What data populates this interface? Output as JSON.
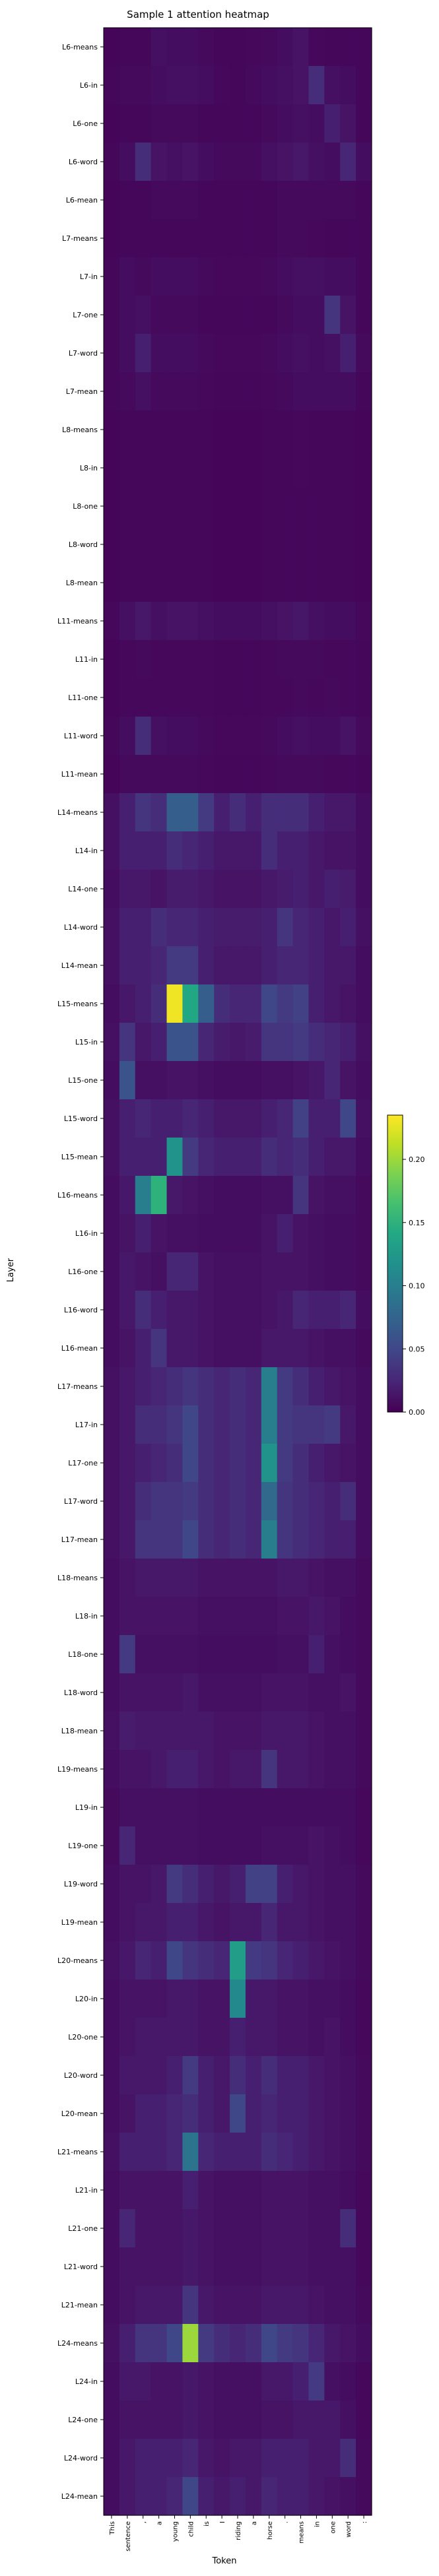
{
  "chart_data": {
    "type": "heatmap",
    "title": "Sample 1 attention heatmap",
    "xlabel": "Token",
    "ylabel": "Layer",
    "x_tick_labels": [
      "This",
      "sentence",
      ",",
      "a",
      "young",
      "child",
      "is",
      "I",
      "riding",
      "a",
      "horse",
      ".",
      "means",
      "in",
      "one",
      "word",
      ":"
    ],
    "y_tick_labels": [
      "L6-means",
      "L6-in",
      "L6-one",
      "L6-word",
      "L6-mean",
      "L7-means",
      "L7-in",
      "L7-one",
      "L7-word",
      "L7-mean",
      "L8-means",
      "L8-in",
      "L8-one",
      "L8-word",
      "L8-mean",
      "L11-means",
      "L11-in",
      "L11-one",
      "L11-word",
      "L11-mean",
      "L14-means",
      "L14-in",
      "L14-one",
      "L14-word",
      "L14-mean",
      "L15-means",
      "L15-in",
      "L15-one",
      "L15-word",
      "L15-mean",
      "L16-means",
      "L16-in",
      "L16-one",
      "L16-word",
      "L16-mean",
      "L17-means",
      "L17-in",
      "L17-one",
      "L17-word",
      "L17-mean",
      "L18-means",
      "L18-in",
      "L18-one",
      "L18-word",
      "L18-mean",
      "L19-means",
      "L19-in",
      "L19-one",
      "L19-word",
      "L19-mean",
      "L20-means",
      "L20-in",
      "L20-one",
      "L20-word",
      "L20-mean",
      "L21-means",
      "L21-in",
      "L21-one",
      "L21-word",
      "L21-mean",
      "L24-means",
      "L24-in",
      "L24-one",
      "L24-word",
      "L24-mean"
    ],
    "values": [
      [
        0.003,
        0.004,
        0.004,
        0.01,
        0.008,
        0.008,
        0.006,
        0.004,
        0.004,
        0.005,
        0.006,
        0.008,
        0.012,
        0.005,
        0.004,
        0.004,
        0.004
      ],
      [
        0.004,
        0.006,
        0.006,
        0.008,
        0.01,
        0.01,
        0.008,
        0.005,
        0.004,
        0.006,
        0.008,
        0.01,
        0.012,
        0.03,
        0.01,
        0.008,
        0.004
      ],
      [
        0.003,
        0.004,
        0.004,
        0.006,
        0.006,
        0.006,
        0.004,
        0.004,
        0.004,
        0.004,
        0.006,
        0.008,
        0.01,
        0.008,
        0.02,
        0.012,
        0.004
      ],
      [
        0.004,
        0.008,
        0.03,
        0.012,
        0.01,
        0.012,
        0.008,
        0.006,
        0.006,
        0.006,
        0.01,
        0.012,
        0.015,
        0.01,
        0.008,
        0.025,
        0.008
      ],
      [
        0.003,
        0.004,
        0.004,
        0.006,
        0.006,
        0.006,
        0.004,
        0.004,
        0.004,
        0.004,
        0.004,
        0.006,
        0.006,
        0.006,
        0.006,
        0.006,
        0.004
      ],
      [
        0.003,
        0.004,
        0.004,
        0.004,
        0.004,
        0.004,
        0.004,
        0.004,
        0.004,
        0.004,
        0.004,
        0.006,
        0.006,
        0.005,
        0.004,
        0.004,
        0.004
      ],
      [
        0.004,
        0.008,
        0.006,
        0.008,
        0.008,
        0.008,
        0.006,
        0.005,
        0.005,
        0.005,
        0.006,
        0.008,
        0.01,
        0.01,
        0.008,
        0.008,
        0.004
      ],
      [
        0.004,
        0.008,
        0.01,
        0.006,
        0.006,
        0.006,
        0.004,
        0.004,
        0.004,
        0.004,
        0.004,
        0.006,
        0.008,
        0.008,
        0.035,
        0.012,
        0.004
      ],
      [
        0.004,
        0.008,
        0.02,
        0.008,
        0.008,
        0.008,
        0.006,
        0.005,
        0.005,
        0.005,
        0.006,
        0.008,
        0.01,
        0.008,
        0.01,
        0.02,
        0.006
      ],
      [
        0.004,
        0.006,
        0.01,
        0.006,
        0.006,
        0.006,
        0.005,
        0.004,
        0.004,
        0.004,
        0.005,
        0.006,
        0.008,
        0.008,
        0.008,
        0.008,
        0.004
      ],
      [
        0.003,
        0.004,
        0.004,
        0.004,
        0.004,
        0.004,
        0.004,
        0.003,
        0.003,
        0.003,
        0.004,
        0.004,
        0.005,
        0.004,
        0.004,
        0.004,
        0.003
      ],
      [
        0.003,
        0.004,
        0.004,
        0.004,
        0.004,
        0.004,
        0.004,
        0.003,
        0.003,
        0.003,
        0.004,
        0.004,
        0.005,
        0.004,
        0.004,
        0.004,
        0.003
      ],
      [
        0.003,
        0.004,
        0.004,
        0.004,
        0.004,
        0.004,
        0.004,
        0.003,
        0.003,
        0.003,
        0.004,
        0.004,
        0.004,
        0.004,
        0.004,
        0.004,
        0.003
      ],
      [
        0.003,
        0.004,
        0.004,
        0.004,
        0.004,
        0.004,
        0.004,
        0.003,
        0.003,
        0.003,
        0.004,
        0.004,
        0.004,
        0.004,
        0.004,
        0.004,
        0.003
      ],
      [
        0.003,
        0.004,
        0.004,
        0.004,
        0.004,
        0.004,
        0.004,
        0.003,
        0.003,
        0.003,
        0.004,
        0.004,
        0.004,
        0.004,
        0.004,
        0.004,
        0.003
      ],
      [
        0.005,
        0.01,
        0.015,
        0.01,
        0.012,
        0.012,
        0.01,
        0.008,
        0.008,
        0.008,
        0.01,
        0.012,
        0.014,
        0.01,
        0.008,
        0.008,
        0.005
      ],
      [
        0.003,
        0.005,
        0.006,
        0.005,
        0.005,
        0.005,
        0.005,
        0.004,
        0.004,
        0.004,
        0.005,
        0.006,
        0.006,
        0.006,
        0.005,
        0.005,
        0.004
      ],
      [
        0.003,
        0.005,
        0.005,
        0.005,
        0.005,
        0.005,
        0.005,
        0.004,
        0.004,
        0.004,
        0.005,
        0.005,
        0.006,
        0.005,
        0.006,
        0.005,
        0.004
      ],
      [
        0.004,
        0.008,
        0.03,
        0.01,
        0.008,
        0.008,
        0.006,
        0.005,
        0.005,
        0.005,
        0.006,
        0.008,
        0.01,
        0.008,
        0.008,
        0.012,
        0.006
      ],
      [
        0.003,
        0.006,
        0.006,
        0.006,
        0.006,
        0.006,
        0.005,
        0.004,
        0.004,
        0.004,
        0.005,
        0.006,
        0.006,
        0.006,
        0.005,
        0.005,
        0.004
      ],
      [
        0.01,
        0.02,
        0.035,
        0.03,
        0.07,
        0.07,
        0.04,
        0.02,
        0.03,
        0.02,
        0.03,
        0.03,
        0.03,
        0.02,
        0.015,
        0.015,
        0.008
      ],
      [
        0.01,
        0.02,
        0.02,
        0.02,
        0.03,
        0.025,
        0.02,
        0.015,
        0.015,
        0.015,
        0.03,
        0.02,
        0.02,
        0.015,
        0.012,
        0.012,
        0.008
      ],
      [
        0.008,
        0.015,
        0.015,
        0.012,
        0.018,
        0.018,
        0.015,
        0.012,
        0.012,
        0.012,
        0.015,
        0.018,
        0.02,
        0.015,
        0.02,
        0.018,
        0.008
      ],
      [
        0.01,
        0.02,
        0.02,
        0.03,
        0.025,
        0.025,
        0.02,
        0.018,
        0.018,
        0.018,
        0.02,
        0.035,
        0.025,
        0.02,
        0.015,
        0.02,
        0.01
      ],
      [
        0.01,
        0.02,
        0.02,
        0.025,
        0.04,
        0.04,
        0.02,
        0.015,
        0.015,
        0.015,
        0.02,
        0.025,
        0.025,
        0.02,
        0.015,
        0.015,
        0.008
      ],
      [
        0.008,
        0.015,
        0.02,
        0.03,
        0.23,
        0.14,
        0.07,
        0.03,
        0.025,
        0.025,
        0.05,
        0.04,
        0.045,
        0.02,
        0.015,
        0.012,
        0.008
      ],
      [
        0.01,
        0.035,
        0.015,
        0.02,
        0.06,
        0.06,
        0.025,
        0.018,
        0.015,
        0.018,
        0.035,
        0.035,
        0.04,
        0.03,
        0.025,
        0.02,
        0.01
      ],
      [
        0.008,
        0.06,
        0.01,
        0.01,
        0.012,
        0.012,
        0.01,
        0.008,
        0.008,
        0.008,
        0.01,
        0.01,
        0.012,
        0.015,
        0.025,
        0.012,
        0.008
      ],
      [
        0.01,
        0.02,
        0.025,
        0.02,
        0.02,
        0.025,
        0.02,
        0.015,
        0.015,
        0.015,
        0.02,
        0.025,
        0.045,
        0.02,
        0.02,
        0.05,
        0.01
      ],
      [
        0.01,
        0.02,
        0.02,
        0.02,
        0.12,
        0.04,
        0.025,
        0.02,
        0.02,
        0.02,
        0.03,
        0.025,
        0.03,
        0.02,
        0.015,
        0.015,
        0.008
      ],
      [
        0.008,
        0.015,
        0.1,
        0.15,
        0.015,
        0.012,
        0.01,
        0.008,
        0.008,
        0.008,
        0.01,
        0.01,
        0.035,
        0.012,
        0.01,
        0.01,
        0.006
      ],
      [
        0.008,
        0.012,
        0.02,
        0.012,
        0.01,
        0.01,
        0.008,
        0.008,
        0.008,
        0.008,
        0.012,
        0.02,
        0.012,
        0.01,
        0.008,
        0.008,
        0.006
      ],
      [
        0.008,
        0.015,
        0.012,
        0.01,
        0.025,
        0.025,
        0.012,
        0.01,
        0.01,
        0.01,
        0.012,
        0.012,
        0.012,
        0.01,
        0.008,
        0.008,
        0.006
      ],
      [
        0.008,
        0.015,
        0.03,
        0.02,
        0.015,
        0.015,
        0.012,
        0.01,
        0.01,
        0.01,
        0.012,
        0.015,
        0.025,
        0.02,
        0.02,
        0.025,
        0.008
      ],
      [
        0.008,
        0.012,
        0.02,
        0.035,
        0.015,
        0.015,
        0.012,
        0.01,
        0.01,
        0.01,
        0.015,
        0.015,
        0.015,
        0.012,
        0.01,
        0.01,
        0.006
      ],
      [
        0.01,
        0.015,
        0.02,
        0.025,
        0.03,
        0.035,
        0.03,
        0.025,
        0.03,
        0.025,
        0.1,
        0.04,
        0.03,
        0.02,
        0.015,
        0.012,
        0.008
      ],
      [
        0.01,
        0.015,
        0.03,
        0.03,
        0.035,
        0.05,
        0.03,
        0.025,
        0.03,
        0.025,
        0.1,
        0.04,
        0.035,
        0.035,
        0.04,
        0.015,
        0.008
      ],
      [
        0.01,
        0.015,
        0.02,
        0.025,
        0.03,
        0.05,
        0.03,
        0.025,
        0.03,
        0.025,
        0.12,
        0.04,
        0.03,
        0.02,
        0.015,
        0.012,
        0.008
      ],
      [
        0.01,
        0.015,
        0.03,
        0.035,
        0.035,
        0.04,
        0.03,
        0.025,
        0.03,
        0.025,
        0.08,
        0.035,
        0.03,
        0.025,
        0.02,
        0.03,
        0.008
      ],
      [
        0.01,
        0.015,
        0.035,
        0.035,
        0.035,
        0.05,
        0.03,
        0.025,
        0.03,
        0.025,
        0.1,
        0.035,
        0.03,
        0.025,
        0.02,
        0.02,
        0.008
      ],
      [
        0.008,
        0.012,
        0.015,
        0.015,
        0.015,
        0.015,
        0.012,
        0.012,
        0.012,
        0.012,
        0.012,
        0.015,
        0.015,
        0.012,
        0.01,
        0.01,
        0.006
      ],
      [
        0.008,
        0.012,
        0.012,
        0.012,
        0.012,
        0.012,
        0.01,
        0.01,
        0.01,
        0.01,
        0.01,
        0.012,
        0.012,
        0.015,
        0.012,
        0.008,
        0.006
      ],
      [
        0.008,
        0.04,
        0.01,
        0.01,
        0.01,
        0.01,
        0.008,
        0.008,
        0.008,
        0.008,
        0.008,
        0.01,
        0.01,
        0.02,
        0.01,
        0.008,
        0.006
      ],
      [
        0.008,
        0.012,
        0.012,
        0.012,
        0.012,
        0.015,
        0.01,
        0.01,
        0.01,
        0.01,
        0.012,
        0.012,
        0.012,
        0.01,
        0.01,
        0.012,
        0.006
      ],
      [
        0.01,
        0.018,
        0.015,
        0.015,
        0.015,
        0.015,
        0.015,
        0.012,
        0.012,
        0.012,
        0.015,
        0.015,
        0.015,
        0.012,
        0.01,
        0.01,
        0.006
      ],
      [
        0.008,
        0.012,
        0.012,
        0.015,
        0.02,
        0.02,
        0.015,
        0.012,
        0.015,
        0.015,
        0.035,
        0.015,
        0.015,
        0.012,
        0.01,
        0.01,
        0.006
      ],
      [
        0.006,
        0.01,
        0.01,
        0.01,
        0.01,
        0.01,
        0.008,
        0.008,
        0.008,
        0.008,
        0.008,
        0.008,
        0.008,
        0.008,
        0.008,
        0.008,
        0.005
      ],
      [
        0.006,
        0.025,
        0.01,
        0.01,
        0.01,
        0.01,
        0.008,
        0.008,
        0.008,
        0.008,
        0.01,
        0.01,
        0.01,
        0.012,
        0.01,
        0.008,
        0.005
      ],
      [
        0.008,
        0.012,
        0.012,
        0.015,
        0.04,
        0.03,
        0.02,
        0.015,
        0.02,
        0.045,
        0.045,
        0.02,
        0.015,
        0.012,
        0.01,
        0.01,
        0.006
      ],
      [
        0.008,
        0.012,
        0.015,
        0.015,
        0.02,
        0.02,
        0.015,
        0.012,
        0.015,
        0.015,
        0.025,
        0.015,
        0.015,
        0.012,
        0.01,
        0.01,
        0.006
      ],
      [
        0.01,
        0.015,
        0.025,
        0.02,
        0.05,
        0.035,
        0.03,
        0.025,
        0.13,
        0.04,
        0.035,
        0.025,
        0.02,
        0.015,
        0.012,
        0.01,
        0.006
      ],
      [
        0.008,
        0.012,
        0.012,
        0.012,
        0.015,
        0.015,
        0.012,
        0.012,
        0.11,
        0.015,
        0.015,
        0.012,
        0.012,
        0.01,
        0.01,
        0.008,
        0.005
      ],
      [
        0.008,
        0.012,
        0.015,
        0.015,
        0.015,
        0.015,
        0.012,
        0.012,
        0.02,
        0.015,
        0.015,
        0.012,
        0.012,
        0.01,
        0.012,
        0.008,
        0.005
      ],
      [
        0.008,
        0.015,
        0.015,
        0.015,
        0.02,
        0.04,
        0.02,
        0.015,
        0.03,
        0.02,
        0.03,
        0.02,
        0.02,
        0.015,
        0.012,
        0.01,
        0.006
      ],
      [
        0.008,
        0.012,
        0.02,
        0.02,
        0.025,
        0.03,
        0.02,
        0.015,
        0.05,
        0.02,
        0.025,
        0.02,
        0.02,
        0.015,
        0.012,
        0.01,
        0.006
      ],
      [
        0.01,
        0.02,
        0.02,
        0.02,
        0.025,
        0.09,
        0.025,
        0.02,
        0.02,
        0.02,
        0.03,
        0.025,
        0.02,
        0.015,
        0.012,
        0.01,
        0.006
      ],
      [
        0.008,
        0.012,
        0.012,
        0.012,
        0.012,
        0.02,
        0.012,
        0.01,
        0.01,
        0.01,
        0.012,
        0.012,
        0.012,
        0.01,
        0.01,
        0.008,
        0.005
      ],
      [
        0.008,
        0.025,
        0.012,
        0.012,
        0.012,
        0.015,
        0.012,
        0.01,
        0.01,
        0.01,
        0.012,
        0.012,
        0.012,
        0.01,
        0.01,
        0.03,
        0.005
      ],
      [
        0.008,
        0.012,
        0.012,
        0.012,
        0.012,
        0.015,
        0.012,
        0.01,
        0.01,
        0.01,
        0.012,
        0.012,
        0.012,
        0.01,
        0.01,
        0.01,
        0.005
      ],
      [
        0.008,
        0.012,
        0.015,
        0.015,
        0.015,
        0.035,
        0.015,
        0.012,
        0.012,
        0.012,
        0.015,
        0.015,
        0.015,
        0.012,
        0.01,
        0.01,
        0.006
      ],
      [
        0.01,
        0.02,
        0.035,
        0.035,
        0.05,
        0.2,
        0.04,
        0.03,
        0.025,
        0.03,
        0.05,
        0.04,
        0.035,
        0.025,
        0.015,
        0.012,
        0.008
      ],
      [
        0.008,
        0.015,
        0.015,
        0.012,
        0.012,
        0.015,
        0.012,
        0.01,
        0.01,
        0.01,
        0.015,
        0.015,
        0.02,
        0.04,
        0.01,
        0.008,
        0.005
      ],
      [
        0.008,
        0.012,
        0.012,
        0.012,
        0.012,
        0.015,
        0.012,
        0.01,
        0.01,
        0.01,
        0.012,
        0.012,
        0.015,
        0.015,
        0.015,
        0.01,
        0.005
      ],
      [
        0.008,
        0.015,
        0.02,
        0.02,
        0.02,
        0.025,
        0.015,
        0.012,
        0.015,
        0.015,
        0.02,
        0.02,
        0.02,
        0.015,
        0.015,
        0.03,
        0.006
      ],
      [
        0.008,
        0.015,
        0.02,
        0.02,
        0.025,
        0.05,
        0.02,
        0.015,
        0.02,
        0.015,
        0.025,
        0.02,
        0.02,
        0.015,
        0.012,
        0.01,
        0.006
      ]
    ],
    "vmin": 0.0,
    "vmax": 0.235,
    "colormap": "viridis",
    "colorbar_ticks": [
      "0.00",
      "0.05",
      "0.10",
      "0.15",
      "0.20"
    ],
    "colorbar_tick_values": [
      0.0,
      0.05,
      0.1,
      0.15,
      0.2
    ],
    "grid": false,
    "legend": "colorbar-right"
  }
}
